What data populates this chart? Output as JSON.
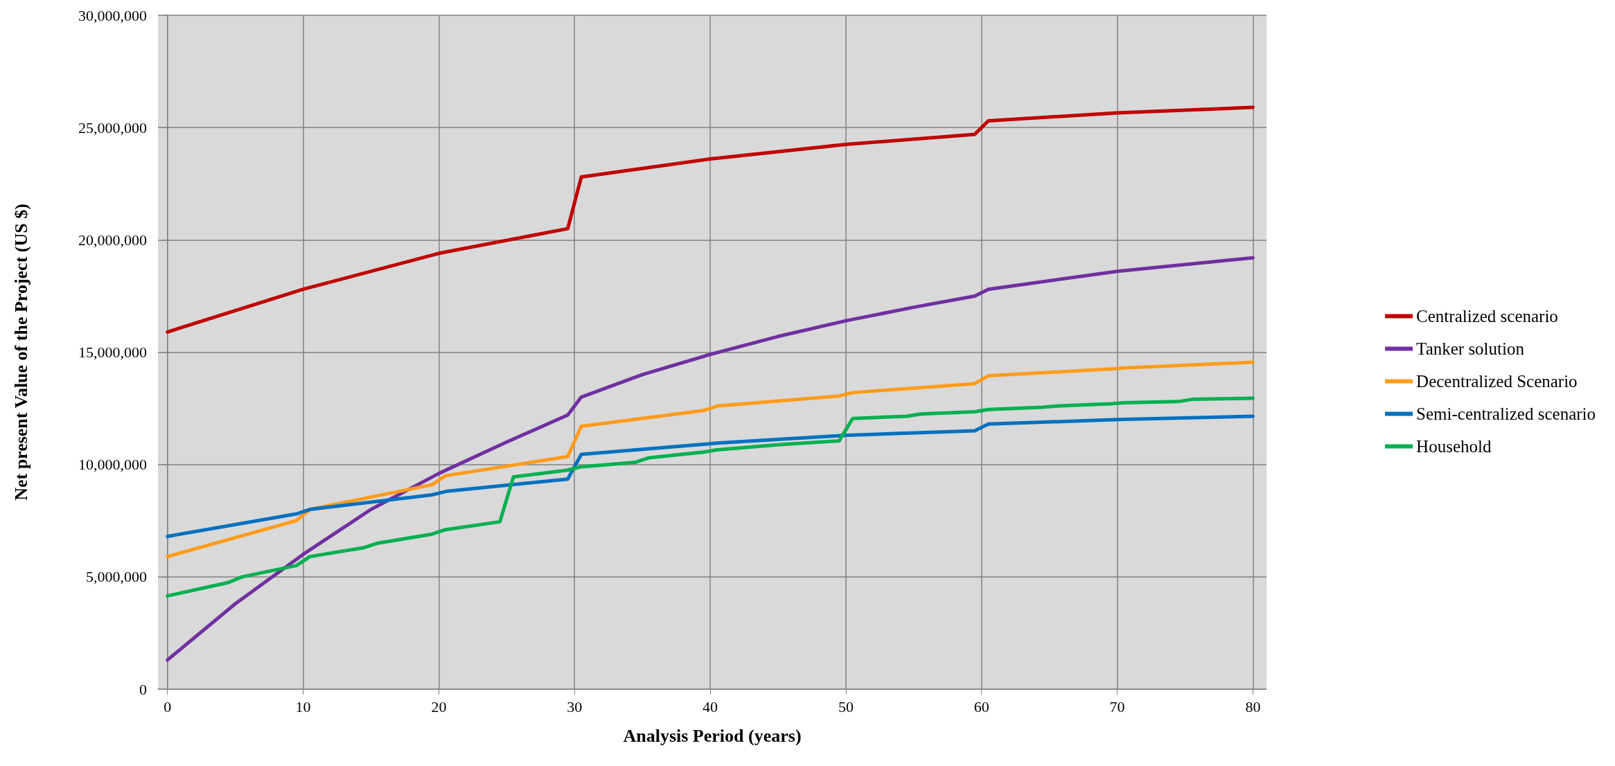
{
  "chart_data": {
    "type": "line",
    "xlabel": "Analysis Period (years)",
    "ylabel": "Net present Value of the Project (US $)",
    "xlim": [
      -0.7,
      81
    ],
    "xticks": [
      0,
      10,
      20,
      30,
      40,
      50,
      60,
      70,
      80
    ],
    "ylim": [
      0,
      30000000
    ],
    "yticks": [
      0,
      {
        "value": 5000000,
        "label": "5,000,000"
      },
      {
        "value": 10000000,
        "label": "10,000,000"
      },
      {
        "value": 15000000,
        "label": "15,000,000"
      },
      {
        "value": 20000000,
        "label": "20,000,000"
      },
      {
        "value": 25000000,
        "label": "25,000,000"
      },
      {
        "value": 30000000,
        "label": "30,000,000"
      }
    ],
    "grid": true,
    "legend": "right",
    "marker": "none",
    "line_style": "solid",
    "series": [
      {
        "name": "Centralized scenario",
        "color": "#c00000",
        "x": [
          0,
          10,
          20,
          29.5,
          30.5,
          40,
          50,
          59.5,
          60.5,
          70,
          80
        ],
        "values": [
          15900000,
          17800000,
          19400000,
          20500000,
          22800000,
          23600000,
          24250000,
          24700000,
          25300000,
          25650000,
          25900000
        ]
      },
      {
        "name": "Tanker solution",
        "color": "#7030a0",
        "x": [
          0,
          5,
          10,
          15,
          20,
          25,
          29.5,
          30.5,
          35,
          40,
          45,
          50,
          55,
          59.5,
          60.5,
          70,
          80
        ],
        "values": [
          1300000,
          3800000,
          6000000,
          8000000,
          9600000,
          11000000,
          12200000,
          13000000,
          14000000,
          14900000,
          15700000,
          16400000,
          17000000,
          17500000,
          17800000,
          18600000,
          19200000
        ]
      },
      {
        "name": "Decentralized Scenario",
        "color": "#ff9c1a",
        "x": [
          0,
          9.5,
          10.5,
          19.5,
          20.5,
          29.5,
          30.5,
          39.5,
          40.5,
          49.5,
          50.5,
          59.5,
          60.5,
          69.5,
          70.5,
          80
        ],
        "values": [
          5900000,
          7500000,
          8000000,
          9100000,
          9500000,
          10350000,
          11700000,
          12400000,
          12600000,
          13050000,
          13200000,
          13600000,
          13950000,
          14250000,
          14300000,
          14550000
        ]
      },
      {
        "name": "Semi-centralized scenario",
        "color": "#0070c0",
        "x": [
          0,
          9.5,
          10.5,
          19.5,
          20.5,
          29.5,
          30.5,
          39.5,
          40.5,
          50,
          59.5,
          60.5,
          70,
          80
        ],
        "values": [
          6800000,
          7800000,
          8000000,
          8650000,
          8800000,
          9350000,
          10450000,
          10900000,
          10950000,
          11300000,
          11500000,
          11800000,
          12000000,
          12150000
        ]
      },
      {
        "name": "Household",
        "color": "#00b050",
        "x": [
          0,
          4.5,
          5.5,
          9.5,
          10.5,
          14.5,
          15.5,
          19.5,
          20.5,
          24.5,
          25.5,
          29.5,
          30.5,
          34.5,
          35.5,
          39.5,
          40.5,
          44.5,
          45.5,
          49.5,
          50.5,
          54.5,
          55.5,
          59.5,
          60.5,
          64.5,
          65.5,
          69.5,
          70.5,
          74.5,
          75.5,
          80
        ],
        "values": [
          4150000,
          4750000,
          5000000,
          5500000,
          5900000,
          6300000,
          6500000,
          6900000,
          7100000,
          7450000,
          9450000,
          9750000,
          9900000,
          10100000,
          10300000,
          10550000,
          10650000,
          10850000,
          10900000,
          11050000,
          12050000,
          12150000,
          12250000,
          12350000,
          12450000,
          12550000,
          12600000,
          12700000,
          12750000,
          12800000,
          12900000,
          12950000
        ]
      }
    ]
  }
}
